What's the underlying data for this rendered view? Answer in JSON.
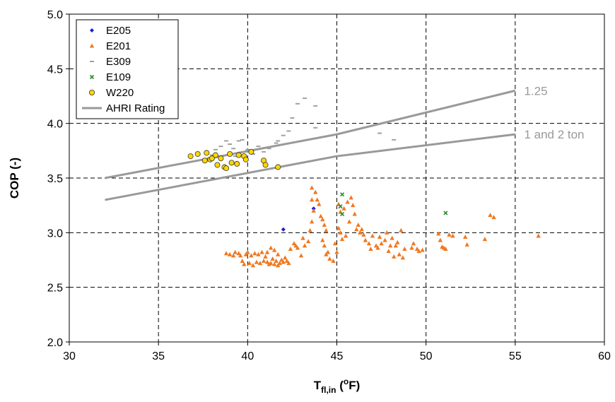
{
  "chart_data": {
    "type": "scatter",
    "xlabel": {
      "main": "T",
      "sub": "fl,in",
      "unit_open": " (",
      "degree": "o",
      "unit_close": "F)"
    },
    "ylabel": "COP (-)",
    "xlim": [
      30,
      60
    ],
    "ylim": [
      2.0,
      5.0
    ],
    "x_ticks": [
      "30",
      "35",
      "40",
      "45",
      "50",
      "55",
      "60"
    ],
    "y_ticks": [
      "2.0",
      "2.5",
      "3.0",
      "3.5",
      "4.0",
      "4.5",
      "5.0"
    ],
    "grid": true,
    "legend_position": "top-left",
    "annotations": [
      {
        "text": "1.25",
        "x": 55.5,
        "y": 4.3
      },
      {
        "text": "1 and 2 ton",
        "x": 55.5,
        "y": 3.9
      }
    ],
    "series": [
      {
        "name": "E205",
        "marker": "diamond",
        "color": "#1f1fcc",
        "points": [
          [
            42.0,
            3.03
          ],
          [
            43.7,
            3.22
          ]
        ]
      },
      {
        "name": "E201",
        "marker": "triangle",
        "color": "#f07820",
        "points": [
          [
            38.8,
            2.81
          ],
          [
            39.0,
            2.8
          ],
          [
            39.2,
            2.79
          ],
          [
            39.3,
            2.82
          ],
          [
            39.5,
            2.81
          ],
          [
            39.6,
            2.79
          ],
          [
            39.7,
            2.74
          ],
          [
            39.8,
            2.71
          ],
          [
            39.9,
            2.8
          ],
          [
            40.0,
            2.82
          ],
          [
            40.1,
            2.72
          ],
          [
            40.2,
            2.79
          ],
          [
            40.3,
            2.7
          ],
          [
            40.4,
            2.81
          ],
          [
            40.5,
            2.73
          ],
          [
            40.6,
            2.8
          ],
          [
            40.7,
            2.72
          ],
          [
            40.8,
            2.82
          ],
          [
            40.9,
            2.74
          ],
          [
            41.0,
            2.78
          ],
          [
            41.1,
            2.73
          ],
          [
            41.2,
            2.71
          ],
          [
            41.3,
            2.72
          ],
          [
            41.4,
            2.76
          ],
          [
            41.5,
            2.71
          ],
          [
            41.6,
            2.74
          ],
          [
            41.7,
            2.7
          ],
          [
            41.8,
            2.72
          ],
          [
            41.9,
            2.75
          ],
          [
            42.0,
            2.73
          ],
          [
            42.1,
            2.77
          ],
          [
            42.2,
            2.74
          ],
          [
            42.3,
            2.72
          ],
          [
            41.7,
            2.8
          ],
          [
            41.5,
            2.84
          ],
          [
            41.3,
            2.86
          ],
          [
            41.1,
            2.82
          ],
          [
            42.4,
            2.85
          ],
          [
            42.6,
            2.9
          ],
          [
            42.8,
            2.86
          ],
          [
            43.0,
            2.79
          ],
          [
            43.2,
            2.88
          ],
          [
            43.4,
            2.92
          ],
          [
            43.5,
            3.02
          ],
          [
            43.6,
            3.1
          ],
          [
            43.7,
            3.2
          ],
          [
            43.6,
            3.3
          ],
          [
            43.6,
            3.41
          ],
          [
            43.8,
            3.37
          ],
          [
            43.9,
            3.3
          ],
          [
            44.0,
            3.26
          ],
          [
            44.1,
            3.15
          ],
          [
            44.2,
            3.12
          ],
          [
            44.3,
            3.07
          ],
          [
            44.4,
            3.02
          ],
          [
            44.2,
            2.93
          ],
          [
            44.3,
            2.88
          ],
          [
            44.4,
            2.8
          ],
          [
            44.5,
            2.82
          ],
          [
            44.6,
            2.76
          ],
          [
            44.8,
            2.74
          ],
          [
            44.9,
            2.9
          ],
          [
            45.0,
            2.82
          ],
          [
            45.1,
            3.04
          ],
          [
            45.2,
            3.0
          ],
          [
            45.3,
            2.94
          ],
          [
            45.5,
            2.97
          ],
          [
            45.1,
            3.26
          ],
          [
            45.2,
            3.19
          ],
          [
            45.4,
            3.22
          ],
          [
            45.6,
            3.28
          ],
          [
            45.8,
            3.32
          ],
          [
            45.9,
            3.25
          ],
          [
            46.0,
            3.17
          ],
          [
            45.7,
            3.1
          ],
          [
            46.2,
            3.07
          ],
          [
            46.3,
            3.0
          ],
          [
            46.4,
            3.03
          ],
          [
            46.5,
            2.98
          ],
          [
            46.6,
            2.93
          ],
          [
            46.8,
            2.9
          ],
          [
            46.9,
            2.85
          ],
          [
            47.0,
            2.97
          ],
          [
            47.2,
            2.88
          ],
          [
            47.3,
            2.86
          ],
          [
            47.5,
            2.9
          ],
          [
            47.7,
            2.93
          ],
          [
            47.8,
            3.0
          ],
          [
            47.9,
            2.83
          ],
          [
            48.0,
            2.88
          ],
          [
            48.1,
            2.95
          ],
          [
            48.2,
            2.78
          ],
          [
            48.3,
            2.88
          ],
          [
            48.5,
            2.8
          ],
          [
            48.6,
            3.02
          ],
          [
            48.7,
            2.77
          ],
          [
            48.8,
            2.85
          ],
          [
            49.2,
            2.86
          ],
          [
            49.3,
            2.9
          ],
          [
            49.5,
            2.85
          ],
          [
            49.6,
            2.83
          ],
          [
            49.8,
            2.84
          ],
          [
            50.7,
            2.99
          ],
          [
            50.8,
            2.93
          ],
          [
            50.9,
            2.87
          ],
          [
            51.0,
            2.86
          ],
          [
            51.1,
            2.85
          ],
          [
            51.3,
            2.98
          ],
          [
            51.5,
            2.97
          ],
          [
            52.2,
            2.96
          ],
          [
            52.3,
            2.89
          ],
          [
            53.3,
            2.94
          ],
          [
            53.6,
            3.16
          ],
          [
            53.8,
            3.14
          ],
          [
            56.3,
            2.97
          ],
          [
            42.7,
            2.88
          ],
          [
            43.1,
            2.95
          ],
          [
            46.1,
            3.03
          ],
          [
            47.4,
            2.96
          ],
          [
            48.4,
            2.91
          ]
        ]
      },
      {
        "name": "E309",
        "marker": "dash",
        "color": "#a0a0a0",
        "points": [
          [
            38.2,
            3.76
          ],
          [
            38.5,
            3.79
          ],
          [
            38.8,
            3.84
          ],
          [
            39.0,
            3.81
          ],
          [
            39.2,
            3.77
          ],
          [
            39.5,
            3.84
          ],
          [
            39.7,
            3.85
          ],
          [
            40.0,
            3.76
          ],
          [
            40.3,
            3.72
          ],
          [
            40.6,
            3.79
          ],
          [
            40.9,
            3.74
          ],
          [
            41.2,
            3.77
          ],
          [
            41.6,
            3.82
          ],
          [
            41.7,
            3.84
          ],
          [
            42.0,
            3.89
          ],
          [
            42.3,
            3.93
          ],
          [
            42.5,
            4.05
          ],
          [
            42.8,
            4.18
          ],
          [
            43.2,
            4.23
          ],
          [
            43.8,
            4.16
          ],
          [
            43.8,
            3.96
          ],
          [
            47.4,
            3.91
          ],
          [
            48.2,
            3.85
          ],
          [
            38.0,
            3.71
          ],
          [
            39.3,
            3.7
          ]
        ]
      },
      {
        "name": "E109",
        "marker": "cross",
        "color": "#2a8a2a",
        "points": [
          [
            45.2,
            3.24
          ],
          [
            45.3,
            3.17
          ],
          [
            45.3,
            3.35
          ],
          [
            51.1,
            3.18
          ]
        ]
      },
      {
        "name": "W220",
        "marker": "circle",
        "color": "#ffd700",
        "points": [
          [
            36.8,
            3.7
          ],
          [
            37.2,
            3.72
          ],
          [
            37.6,
            3.66
          ],
          [
            37.7,
            3.73
          ],
          [
            37.9,
            3.67
          ],
          [
            38.0,
            3.68
          ],
          [
            38.2,
            3.71
          ],
          [
            38.3,
            3.62
          ],
          [
            38.5,
            3.68
          ],
          [
            38.7,
            3.6
          ],
          [
            38.8,
            3.59
          ],
          [
            39.0,
            3.72
          ],
          [
            39.1,
            3.64
          ],
          [
            39.4,
            3.63
          ],
          [
            39.5,
            3.71
          ],
          [
            39.8,
            3.7
          ],
          [
            39.9,
            3.67
          ],
          [
            40.2,
            3.74
          ],
          [
            40.9,
            3.66
          ],
          [
            41.0,
            3.62
          ],
          [
            41.7,
            3.6
          ]
        ]
      },
      {
        "name": "AHRI Rating",
        "marker": "line",
        "color": "#999999",
        "lines": [
          [
            [
              32,
              3.5
            ],
            [
              45,
              3.9
            ],
            [
              55,
              4.3
            ]
          ],
          [
            [
              32,
              3.3
            ],
            [
              45,
              3.7
            ],
            [
              55,
              3.9
            ]
          ]
        ]
      }
    ]
  }
}
